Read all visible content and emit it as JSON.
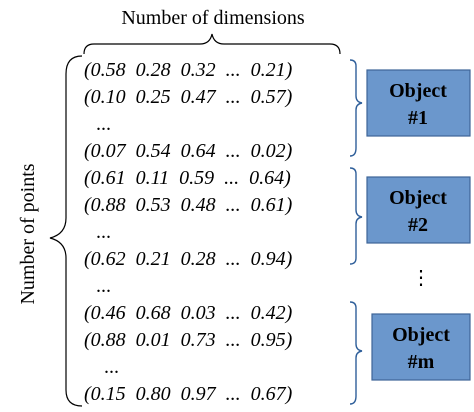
{
  "top_label": "Number of dimensions",
  "side_label": "Number of points",
  "ellipsis_vertical": "⋮",
  "rows": [
    {
      "text": "(0.58  0.28  0.32  ...  0.21)"
    },
    {
      "text": "(0.10  0.25  0.47  ...  0.57)"
    },
    {
      "text": "..."
    },
    {
      "text": "(0.07  0.54  0.64  ...  0.02)"
    },
    {
      "text": "(0.61  0.11  0.59  ...  0.64)"
    },
    {
      "text": "(0.88  0.53  0.48  ...  0.61)"
    },
    {
      "text": "..."
    },
    {
      "text": "(0.62  0.21  0.28  ...  0.94)"
    },
    {
      "text": "..."
    },
    {
      "text": "(0.46  0.68  0.03  ...  0.42)"
    },
    {
      "text": "(0.88  0.01  0.73  ...  0.95)"
    },
    {
      "text": "..."
    },
    {
      "text": "(0.15  0.80  0.97  ...  0.67)"
    }
  ],
  "objects": [
    {
      "line1": "Object",
      "line2": "#1"
    },
    {
      "line1": "Object",
      "line2": "#2"
    },
    {
      "line1": "Object",
      "line2": "#m"
    }
  ],
  "colors": {
    "box_fill": "#6b97cc",
    "box_border": "#3e6598",
    "group_brace": "#2f5f9a"
  }
}
